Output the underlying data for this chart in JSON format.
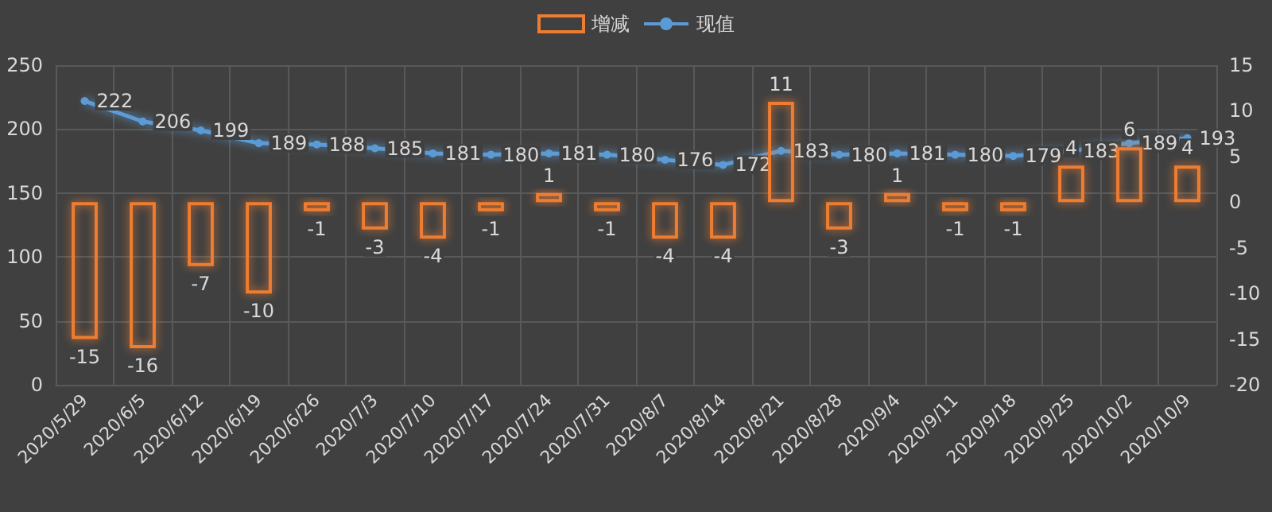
{
  "chart_data": {
    "type": "bar",
    "categories": [
      "2020/5/29",
      "2020/6/5",
      "2020/6/12",
      "2020/6/19",
      "2020/6/26",
      "2020/7/3",
      "2020/7/10",
      "2020/7/17",
      "2020/7/24",
      "2020/7/31",
      "2020/8/7",
      "2020/8/14",
      "2020/8/21",
      "2020/8/28",
      "2020/9/4",
      "2020/9/11",
      "2020/9/18",
      "2020/9/25",
      "2020/10/2",
      "2020/10/9"
    ],
    "series": [
      {
        "name": "增减",
        "axis": "y2",
        "color": "#ed7d31",
        "values": [
          -15,
          -16,
          -7,
          -10,
          -1,
          -3,
          -4,
          -1,
          1,
          -1,
          -4,
          -4,
          11,
          -3,
          1,
          -1,
          -1,
          4,
          6,
          4
        ]
      },
      {
        "name": "现值",
        "type": "line",
        "color": "#5b9bd5",
        "values": [
          222,
          206,
          199,
          189,
          188,
          185,
          181,
          180,
          181,
          180,
          176,
          172,
          183,
          180,
          181,
          180,
          179,
          183,
          189,
          193
        ]
      }
    ],
    "ylim": [
      0,
      250
    ],
    "yticks": [
      0,
      50,
      100,
      150,
      200,
      250
    ],
    "y2lim": [
      -20,
      15
    ],
    "y2ticks": [
      -20,
      -15,
      -10,
      -5,
      0,
      5,
      10,
      15
    ],
    "data_labels": true,
    "grid": true,
    "legend": "top",
    "marker": "circle",
    "line_style": "solid"
  }
}
